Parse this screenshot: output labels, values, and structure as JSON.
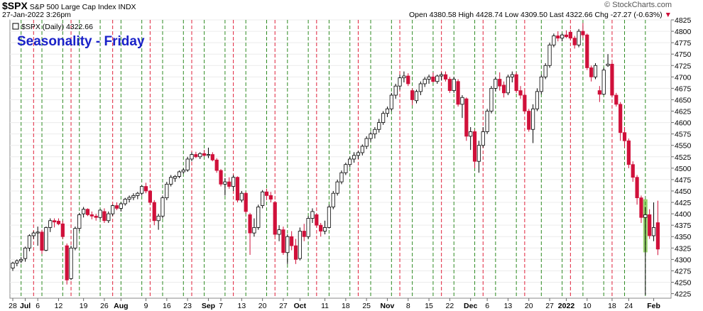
{
  "header": {
    "symbol": "$SPX",
    "name": "S&P 500 Large Cap Index",
    "exchange": "INDX",
    "datetime": "27-Jan-2022 3:26pm",
    "logo": "© StockCharts.com",
    "ohlc_label": "Open 4380.58  High 4428.74  Low 4309.50  Last 4322.66  Chg -27.27 (-0.63%)",
    "chg_arrow": "▼",
    "legend": "$SPX (Daily) 4322.66"
  },
  "colors": {
    "up": "#ffffff",
    "down": "#d0103a",
    "green_line": "#2e8b22",
    "red_line": "#e0203a",
    "annotation": "#1a22c8",
    "highlight": "#8fd060"
  },
  "chart_data": {
    "type": "candlestick",
    "title": "Seasonality - Friday",
    "ylim": [
      4215,
      4825
    ],
    "yticks": [
      4225,
      4250,
      4275,
      4300,
      4325,
      4350,
      4375,
      4400,
      4425,
      4450,
      4475,
      4500,
      4525,
      4550,
      4575,
      4600,
      4625,
      4650,
      4675,
      4700,
      4725,
      4750,
      4775,
      4800,
      4825
    ],
    "xticks": [
      {
        "label": "28",
        "day": 0
      },
      {
        "label": "Jul",
        "day": 3
      },
      {
        "label": "6",
        "day": 6
      },
      {
        "label": "12",
        "day": 11
      },
      {
        "label": "19",
        "day": 17
      },
      {
        "label": "26",
        "day": 22
      },
      {
        "label": "Aug",
        "day": 26
      },
      {
        "label": "9",
        "day": 32
      },
      {
        "label": "16",
        "day": 37
      },
      {
        "label": "23",
        "day": 42
      },
      {
        "label": "Sep",
        "day": 47
      },
      {
        "label": "7",
        "day": 50
      },
      {
        "label": "13",
        "day": 55
      },
      {
        "label": "20",
        "day": 60
      },
      {
        "label": "27",
        "day": 65
      },
      {
        "label": "Oct",
        "day": 69
      },
      {
        "label": "11",
        "day": 75
      },
      {
        "label": "18",
        "day": 80
      },
      {
        "label": "25",
        "day": 85
      },
      {
        "label": "Nov",
        "day": 90
      },
      {
        "label": "8",
        "day": 95
      },
      {
        "label": "15",
        "day": 100
      },
      {
        "label": "22",
        "day": 105
      },
      {
        "label": "Dec",
        "day": 110
      },
      {
        "label": "6",
        "day": 114
      },
      {
        "label": "13",
        "day": 119
      },
      {
        "label": "20",
        "day": 124
      },
      {
        "label": "27",
        "day": 129
      },
      {
        "label": "2022",
        "day": 133
      },
      {
        "label": "10",
        "day": 138
      },
      {
        "label": "18",
        "day": 144
      },
      {
        "label": "24",
        "day": 148
      },
      {
        "label": "Feb",
        "day": 154
      }
    ],
    "green_lines_days": [
      2,
      7,
      12,
      16,
      21,
      26,
      31,
      36,
      41,
      46,
      51,
      56,
      61,
      66,
      71,
      76,
      81,
      86,
      91,
      96,
      101,
      106,
      111,
      116,
      121,
      127,
      132,
      137,
      142,
      147,
      152
    ],
    "red_lines_days": [
      5,
      14,
      24,
      33,
      43,
      53,
      63,
      73,
      83,
      93,
      103,
      113,
      123,
      134,
      144
    ],
    "highlight_day": 152,
    "candles": [
      {
        "o": 4281,
        "h": 4295,
        "l": 4275,
        "c": 4292
      },
      {
        "o": 4292,
        "h": 4300,
        "l": 4285,
        "c": 4297
      },
      {
        "o": 4297,
        "h": 4305,
        "l": 4292,
        "c": 4300
      },
      {
        "o": 4302,
        "h": 4328,
        "l": 4295,
        "c": 4325
      },
      {
        "o": 4325,
        "h": 4355,
        "l": 4318,
        "c": 4352
      },
      {
        "o": 4352,
        "h": 4362,
        "l": 4345,
        "c": 4358
      },
      {
        "o": 4358,
        "h": 4372,
        "l": 4330,
        "c": 4360
      },
      {
        "o": 4360,
        "h": 4365,
        "l": 4312,
        "c": 4320
      },
      {
        "o": 4320,
        "h": 4372,
        "l": 4318,
        "c": 4370
      },
      {
        "o": 4370,
        "h": 4390,
        "l": 4360,
        "c": 4385
      },
      {
        "o": 4385,
        "h": 4390,
        "l": 4370,
        "c": 4382
      },
      {
        "o": 4384,
        "h": 4390,
        "l": 4375,
        "c": 4378
      },
      {
        "o": 4378,
        "h": 4385,
        "l": 4345,
        "c": 4350
      },
      {
        "o": 4330,
        "h": 4335,
        "l": 4245,
        "c": 4255
      },
      {
        "o": 4258,
        "h": 4330,
        "l": 4255,
        "c": 4325
      },
      {
        "o": 4325,
        "h": 4372,
        "l": 4320,
        "c": 4368
      },
      {
        "o": 4368,
        "h": 4402,
        "l": 4362,
        "c": 4398
      },
      {
        "o": 4400,
        "h": 4415,
        "l": 4392,
        "c": 4410
      },
      {
        "o": 4410,
        "h": 4412,
        "l": 4395,
        "c": 4398
      },
      {
        "o": 4398,
        "h": 4405,
        "l": 4388,
        "c": 4395
      },
      {
        "o": 4395,
        "h": 4400,
        "l": 4385,
        "c": 4392
      },
      {
        "o": 4392,
        "h": 4410,
        "l": 4388,
        "c": 4408
      },
      {
        "o": 4405,
        "h": 4412,
        "l": 4380,
        "c": 4385
      },
      {
        "o": 4385,
        "h": 4405,
        "l": 4380,
        "c": 4400
      },
      {
        "o": 4400,
        "h": 4420,
        "l": 4395,
        "c": 4418
      },
      {
        "o": 4418,
        "h": 4425,
        "l": 4408,
        "c": 4412
      },
      {
        "o": 4412,
        "h": 4425,
        "l": 4405,
        "c": 4422
      },
      {
        "o": 4422,
        "h": 4435,
        "l": 4418,
        "c": 4432
      },
      {
        "o": 4432,
        "h": 4440,
        "l": 4425,
        "c": 4436
      },
      {
        "o": 4436,
        "h": 4445,
        "l": 4430,
        "c": 4440
      },
      {
        "o": 4440,
        "h": 4448,
        "l": 4432,
        "c": 4445
      },
      {
        "o": 4445,
        "h": 4462,
        "l": 4440,
        "c": 4460
      },
      {
        "o": 4460,
        "h": 4468,
        "l": 4445,
        "c": 4450
      },
      {
        "o": 4450,
        "h": 4452,
        "l": 4420,
        "c": 4425
      },
      {
        "o": 4425,
        "h": 4430,
        "l": 4375,
        "c": 4385
      },
      {
        "o": 4385,
        "h": 4400,
        "l": 4365,
        "c": 4395
      },
      {
        "o": 4395,
        "h": 4440,
        "l": 4390,
        "c": 4435
      },
      {
        "o": 4435,
        "h": 4470,
        "l": 4430,
        "c": 4465
      },
      {
        "o": 4465,
        "h": 4485,
        "l": 4460,
        "c": 4480
      },
      {
        "o": 4478,
        "h": 4485,
        "l": 4470,
        "c": 4482
      },
      {
        "o": 4482,
        "h": 4495,
        "l": 4478,
        "c": 4492
      },
      {
        "o": 4492,
        "h": 4500,
        "l": 4488,
        "c": 4496
      },
      {
        "o": 4496,
        "h": 4525,
        "l": 4492,
        "c": 4520
      },
      {
        "o": 4520,
        "h": 4535,
        "l": 4515,
        "c": 4530
      },
      {
        "o": 4530,
        "h": 4536,
        "l": 4522,
        "c": 4525
      },
      {
        "o": 4525,
        "h": 4535,
        "l": 4520,
        "c": 4532
      },
      {
        "o": 4532,
        "h": 4540,
        "l": 4525,
        "c": 4528
      },
      {
        "o": 4528,
        "h": 4545,
        "l": 4522,
        "c": 4530
      },
      {
        "o": 4530,
        "h": 4535,
        "l": 4515,
        "c": 4518
      },
      {
        "o": 4518,
        "h": 4522,
        "l": 4490,
        "c": 4495
      },
      {
        "o": 4495,
        "h": 4498,
        "l": 4460,
        "c": 4465
      },
      {
        "o": 4465,
        "h": 4478,
        "l": 4440,
        "c": 4470
      },
      {
        "o": 4470,
        "h": 4480,
        "l": 4455,
        "c": 4460
      },
      {
        "o": 4460,
        "h": 4485,
        "l": 4450,
        "c": 4480
      },
      {
        "o": 4480,
        "h": 4482,
        "l": 4425,
        "c": 4430
      },
      {
        "o": 4430,
        "h": 4450,
        "l": 4425,
        "c": 4445
      },
      {
        "o": 4445,
        "h": 4448,
        "l": 4400,
        "c": 4405
      },
      {
        "o": 4398,
        "h": 4402,
        "l": 4310,
        "c": 4358
      },
      {
        "o": 4358,
        "h": 4390,
        "l": 4350,
        "c": 4370
      },
      {
        "o": 4370,
        "h": 4420,
        "l": 4365,
        "c": 4415
      },
      {
        "o": 4418,
        "h": 4452,
        "l": 4412,
        "c": 4448
      },
      {
        "o": 4448,
        "h": 4455,
        "l": 4430,
        "c": 4440
      },
      {
        "o": 4440,
        "h": 4448,
        "l": 4425,
        "c": 4432
      },
      {
        "o": 4425,
        "h": 4428,
        "l": 4350,
        "c": 4355
      },
      {
        "o": 4355,
        "h": 4375,
        "l": 4340,
        "c": 4365
      },
      {
        "o": 4365,
        "h": 4372,
        "l": 4310,
        "c": 4315
      },
      {
        "o": 4315,
        "h": 4355,
        "l": 4290,
        "c": 4350
      },
      {
        "o": 4350,
        "h": 4362,
        "l": 4320,
        "c": 4330
      },
      {
        "o": 4330,
        "h": 4345,
        "l": 4290,
        "c": 4300
      },
      {
        "o": 4302,
        "h": 4370,
        "l": 4298,
        "c": 4362
      },
      {
        "o": 4362,
        "h": 4378,
        "l": 4340,
        "c": 4350
      },
      {
        "o": 4350,
        "h": 4395,
        "l": 4345,
        "c": 4390
      },
      {
        "o": 4390,
        "h": 4412,
        "l": 4380,
        "c": 4405
      },
      {
        "o": 4398,
        "h": 4400,
        "l": 4370,
        "c": 4375
      },
      {
        "o": 4375,
        "h": 4380,
        "l": 4350,
        "c": 4362
      },
      {
        "o": 4362,
        "h": 4385,
        "l": 4355,
        "c": 4370
      },
      {
        "o": 4370,
        "h": 4420,
        "l": 4368,
        "c": 4415
      },
      {
        "o": 4415,
        "h": 4450,
        "l": 4410,
        "c": 4445
      },
      {
        "o": 4445,
        "h": 4475,
        "l": 4440,
        "c": 4470
      },
      {
        "o": 4470,
        "h": 4495,
        "l": 4465,
        "c": 4490
      },
      {
        "o": 4490,
        "h": 4512,
        "l": 4485,
        "c": 4508
      },
      {
        "o": 4508,
        "h": 4525,
        "l": 4502,
        "c": 4520
      },
      {
        "o": 4520,
        "h": 4535,
        "l": 4512,
        "c": 4528
      },
      {
        "o": 4528,
        "h": 4538,
        "l": 4520,
        "c": 4534
      },
      {
        "o": 4534,
        "h": 4552,
        "l": 4528,
        "c": 4548
      },
      {
        "o": 4548,
        "h": 4570,
        "l": 4542,
        "c": 4565
      },
      {
        "o": 4565,
        "h": 4580,
        "l": 4558,
        "c": 4575
      },
      {
        "o": 4575,
        "h": 4590,
        "l": 4565,
        "c": 4585
      },
      {
        "o": 4585,
        "h": 4608,
        "l": 4578,
        "c": 4600
      },
      {
        "o": 4600,
        "h": 4625,
        "l": 4595,
        "c": 4620
      },
      {
        "o": 4620,
        "h": 4635,
        "l": 4612,
        "c": 4630
      },
      {
        "o": 4630,
        "h": 4665,
        "l": 4625,
        "c": 4660
      },
      {
        "o": 4660,
        "h": 4685,
        "l": 4652,
        "c": 4680
      },
      {
        "o": 4680,
        "h": 4705,
        "l": 4672,
        "c": 4698
      },
      {
        "o": 4698,
        "h": 4712,
        "l": 4688,
        "c": 4702
      },
      {
        "o": 4702,
        "h": 4708,
        "l": 4680,
        "c": 4685
      },
      {
        "o": 4670,
        "h": 4675,
        "l": 4638,
        "c": 4650
      },
      {
        "o": 4648,
        "h": 4672,
        "l": 4642,
        "c": 4668
      },
      {
        "o": 4668,
        "h": 4690,
        "l": 4660,
        "c": 4685
      },
      {
        "o": 4685,
        "h": 4700,
        "l": 4678,
        "c": 4695
      },
      {
        "o": 4695,
        "h": 4705,
        "l": 4685,
        "c": 4700
      },
      {
        "o": 4700,
        "h": 4710,
        "l": 4688,
        "c": 4690
      },
      {
        "o": 4690,
        "h": 4705,
        "l": 4685,
        "c": 4702
      },
      {
        "o": 4702,
        "h": 4710,
        "l": 4692,
        "c": 4705
      },
      {
        "o": 4705,
        "h": 4712,
        "l": 4690,
        "c": 4695
      },
      {
        "o": 4695,
        "h": 4700,
        "l": 4665,
        "c": 4670
      },
      {
        "o": 4670,
        "h": 4700,
        "l": 4665,
        "c": 4695
      },
      {
        "o": 4690,
        "h": 4695,
        "l": 4635,
        "c": 4640
      },
      {
        "o": 4640,
        "h": 4660,
        "l": 4610,
        "c": 4655
      },
      {
        "o": 4652,
        "h": 4655,
        "l": 4560,
        "c": 4570
      },
      {
        "o": 4570,
        "h": 4590,
        "l": 4540,
        "c": 4580
      },
      {
        "o": 4580,
        "h": 4585,
        "l": 4500,
        "c": 4515
      },
      {
        "o": 4515,
        "h": 4560,
        "l": 4490,
        "c": 4550
      },
      {
        "o": 4550,
        "h": 4590,
        "l": 4545,
        "c": 4580
      },
      {
        "o": 4580,
        "h": 4630,
        "l": 4575,
        "c": 4625
      },
      {
        "o": 4625,
        "h": 4680,
        "l": 4620,
        "c": 4675
      },
      {
        "o": 4675,
        "h": 4700,
        "l": 4668,
        "c": 4695
      },
      {
        "o": 4695,
        "h": 4710,
        "l": 4670,
        "c": 4680
      },
      {
        "o": 4682,
        "h": 4690,
        "l": 4655,
        "c": 4665
      },
      {
        "o": 4665,
        "h": 4705,
        "l": 4660,
        "c": 4700
      },
      {
        "o": 4700,
        "h": 4712,
        "l": 4688,
        "c": 4705
      },
      {
        "o": 4705,
        "h": 4710,
        "l": 4665,
        "c": 4670
      },
      {
        "o": 4670,
        "h": 4680,
        "l": 4652,
        "c": 4660
      },
      {
        "o": 4660,
        "h": 4668,
        "l": 4620,
        "c": 4625
      },
      {
        "o": 4625,
        "h": 4630,
        "l": 4580,
        "c": 4585
      },
      {
        "o": 4585,
        "h": 4640,
        "l": 4555,
        "c": 4630
      },
      {
        "o": 4630,
        "h": 4675,
        "l": 4625,
        "c": 4668
      },
      {
        "o": 4668,
        "h": 4705,
        "l": 4662,
        "c": 4700
      },
      {
        "o": 4700,
        "h": 4730,
        "l": 4695,
        "c": 4725
      },
      {
        "o": 4725,
        "h": 4775,
        "l": 4720,
        "c": 4770
      },
      {
        "o": 4770,
        "h": 4795,
        "l": 4765,
        "c": 4790
      },
      {
        "o": 4790,
        "h": 4800,
        "l": 4778,
        "c": 4785
      },
      {
        "o": 4785,
        "h": 4795,
        "l": 4778,
        "c": 4792
      },
      {
        "o": 4792,
        "h": 4802,
        "l": 4785,
        "c": 4788
      },
      {
        "o": 4798,
        "h": 4803,
        "l": 4780,
        "c": 4785
      },
      {
        "o": 4785,
        "h": 4790,
        "l": 4762,
        "c": 4770
      },
      {
        "o": 4770,
        "h": 4805,
        "l": 4765,
        "c": 4800
      },
      {
        "o": 4800,
        "h": 4818,
        "l": 4785,
        "c": 4792
      },
      {
        "o": 4792,
        "h": 4795,
        "l": 4715,
        "c": 4720
      },
      {
        "o": 4720,
        "h": 4725,
        "l": 4690,
        "c": 4700
      },
      {
        "o": 4700,
        "h": 4730,
        "l": 4695,
        "c": 4725
      },
      {
        "o": 4670,
        "h": 4680,
        "l": 4645,
        "c": 4662
      },
      {
        "o": 4662,
        "h": 4720,
        "l": 4660,
        "c": 4715
      },
      {
        "o": 4725,
        "h": 4750,
        "l": 4722,
        "c": 4728
      },
      {
        "o": 4728,
        "h": 4732,
        "l": 4655,
        "c": 4660
      },
      {
        "o": 4660,
        "h": 4665,
        "l": 4635,
        "c": 4640
      },
      {
        "o": 4640,
        "h": 4645,
        "l": 4560,
        "c": 4578
      },
      {
        "o": 4578,
        "h": 4590,
        "l": 4545,
        "c": 4560
      },
      {
        "o": 4560,
        "h": 4565,
        "l": 4500,
        "c": 4508
      },
      {
        "o": 4508,
        "h": 4515,
        "l": 4470,
        "c": 4480
      },
      {
        "o": 4480,
        "h": 4485,
        "l": 4420,
        "c": 4435
      },
      {
        "o": 4435,
        "h": 4440,
        "l": 4380,
        "c": 4392
      },
      {
        "o": 4392,
        "h": 4415,
        "l": 4222,
        "c": 4398
      },
      {
        "o": 4398,
        "h": 4410,
        "l": 4345,
        "c": 4352
      },
      {
        "o": 4352,
        "h": 4425,
        "l": 4340,
        "c": 4370
      },
      {
        "o": 4380.58,
        "h": 4428.74,
        "l": 4309.5,
        "c": 4322.66
      }
    ]
  }
}
